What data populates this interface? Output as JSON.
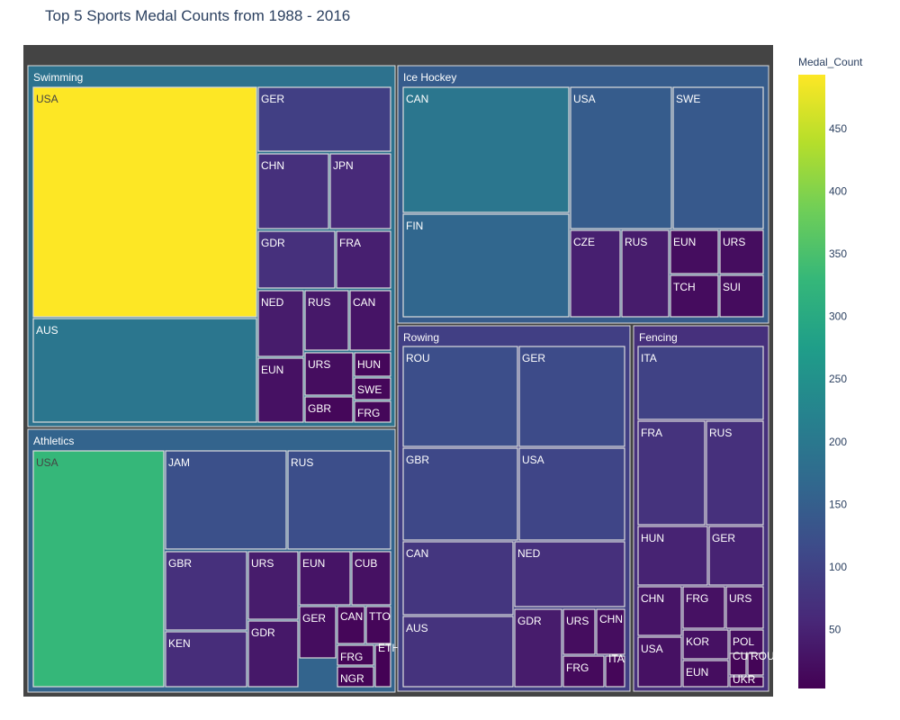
{
  "title": "Top 5 Sports Medal Counts from 1988 - 2016",
  "colorbar": {
    "title": "Medal_Count",
    "ticks": [
      50,
      100,
      150,
      200,
      250,
      300,
      350,
      400,
      450
    ],
    "min": 3,
    "max": 493
  },
  "chart_data": {
    "type": "treemap",
    "title": "Top 5 Sports Medal Counts from 1988 - 2016",
    "colorscale": "Viridis",
    "color_variable": "Medal_Count",
    "groups": [
      {
        "name": "Swimming",
        "value": 188,
        "items": [
          {
            "name": "USA",
            "value": 493
          },
          {
            "name": "AUS",
            "value": 195
          },
          {
            "name": "GER",
            "value": 95
          },
          {
            "name": "CHN",
            "value": 70
          },
          {
            "name": "JPN",
            "value": 60
          },
          {
            "name": "GDR",
            "value": 70
          },
          {
            "name": "FRA",
            "value": 45
          },
          {
            "name": "NED",
            "value": 40
          },
          {
            "name": "RUS",
            "value": 35
          },
          {
            "name": "CAN",
            "value": 30
          },
          {
            "name": "EUN",
            "value": 25
          },
          {
            "name": "URS",
            "value": 20
          },
          {
            "name": "HUN",
            "value": 12
          },
          {
            "name": "SWE",
            "value": 12
          },
          {
            "name": "GBR",
            "value": 12
          },
          {
            "name": "FRG",
            "value": 12
          }
        ]
      },
      {
        "name": "Athletics",
        "value": 160,
        "items": [
          {
            "name": "USA",
            "value": 330
          },
          {
            "name": "JAM",
            "value": 125
          },
          {
            "name": "RUS",
            "value": 120
          },
          {
            "name": "GBR",
            "value": 70
          },
          {
            "name": "URS",
            "value": 40
          },
          {
            "name": "EUN",
            "value": 30
          },
          {
            "name": "CUB",
            "value": 25
          },
          {
            "name": "KEN",
            "value": 65
          },
          {
            "name": "GDR",
            "value": 35
          },
          {
            "name": "GER",
            "value": 20
          },
          {
            "name": "CAN",
            "value": 10
          },
          {
            "name": "TTO",
            "value": 10
          },
          {
            "name": "FRG",
            "value": 8
          },
          {
            "name": "NGR",
            "value": 8
          },
          {
            "name": "ETH",
            "value": 5
          }
        ]
      },
      {
        "name": "Ice Hockey",
        "value": 145,
        "items": [
          {
            "name": "CAN",
            "value": 195
          },
          {
            "name": "FIN",
            "value": 165
          },
          {
            "name": "USA",
            "value": 145
          },
          {
            "name": "SWE",
            "value": 140
          },
          {
            "name": "CZE",
            "value": 45
          },
          {
            "name": "RUS",
            "value": 40
          },
          {
            "name": "EUN",
            "value": 20
          },
          {
            "name": "URS",
            "value": 20
          },
          {
            "name": "TCH",
            "value": 18
          },
          {
            "name": "SUI",
            "value": 18
          }
        ]
      },
      {
        "name": "Rowing",
        "value": 95,
        "items": [
          {
            "name": "ROU",
            "value": 120
          },
          {
            "name": "GER",
            "value": 115
          },
          {
            "name": "GBR",
            "value": 110
          },
          {
            "name": "USA",
            "value": 105
          },
          {
            "name": "CAN",
            "value": 80
          },
          {
            "name": "NED",
            "value": 70
          },
          {
            "name": "AUS",
            "value": 75
          },
          {
            "name": "GDR",
            "value": 40
          },
          {
            "name": "URS",
            "value": 20
          },
          {
            "name": "CHN",
            "value": 20
          },
          {
            "name": "FRG",
            "value": 15
          },
          {
            "name": "ITA",
            "value": 10
          }
        ]
      },
      {
        "name": "Fencing",
        "value": 70,
        "items": [
          {
            "name": "ITA",
            "value": 100
          },
          {
            "name": "FRA",
            "value": 75
          },
          {
            "name": "RUS",
            "value": 70
          },
          {
            "name": "HUN",
            "value": 50
          },
          {
            "name": "GER",
            "value": 50
          },
          {
            "name": "CHN",
            "value": 30
          },
          {
            "name": "FRG",
            "value": 25
          },
          {
            "name": "URS",
            "value": 25
          },
          {
            "name": "USA",
            "value": 25
          },
          {
            "name": "KOR",
            "value": 25
          },
          {
            "name": "POL",
            "value": 20
          },
          {
            "name": "EUN",
            "value": 20
          },
          {
            "name": "CUB",
            "value": 8
          },
          {
            "name": "ROU",
            "value": 8
          },
          {
            "name": "UKR",
            "value": 5
          }
        ]
      }
    ]
  }
}
